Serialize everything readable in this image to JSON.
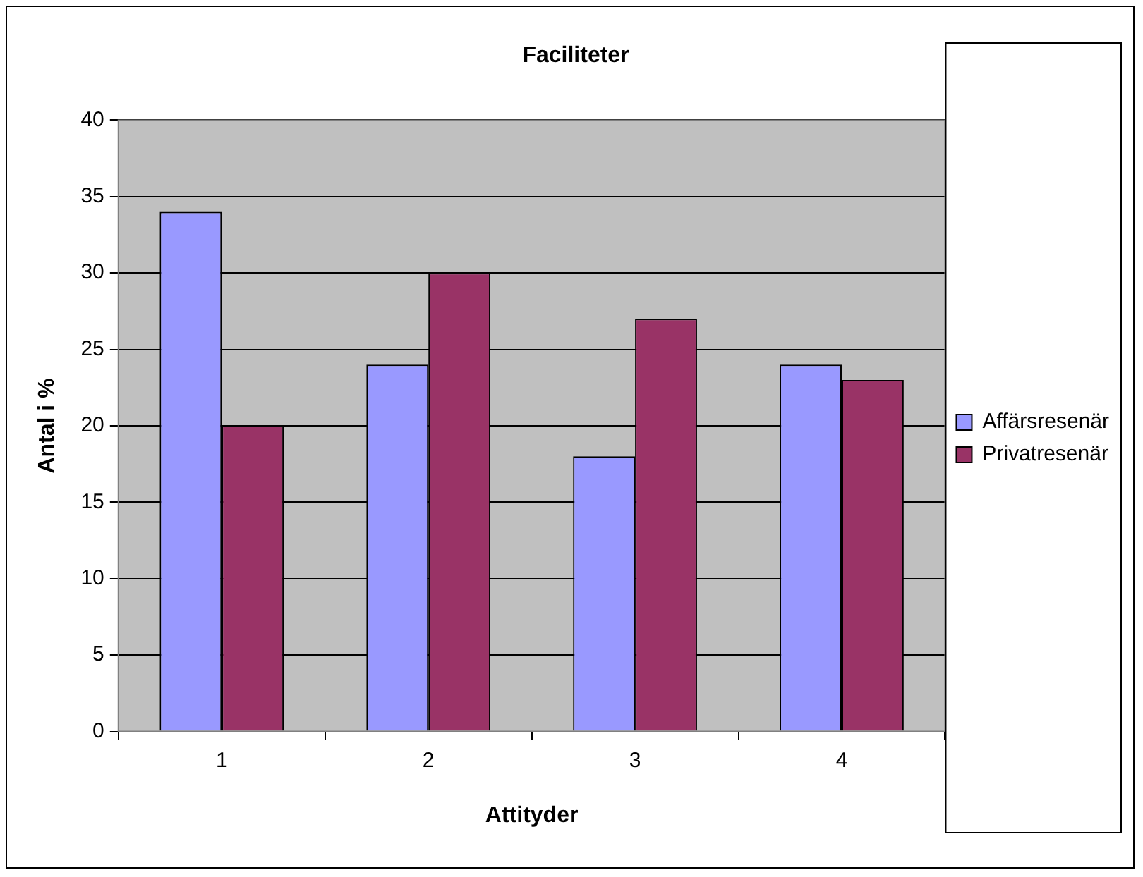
{
  "chart_data": {
    "type": "bar",
    "title": "Faciliteter",
    "xlabel": "Attityder",
    "ylabel": "Antal i %",
    "categories": [
      "1",
      "2",
      "3",
      "4"
    ],
    "series": [
      {
        "name": "Affärsresenär",
        "color": "#9999ff",
        "values": [
          34,
          24,
          18,
          24
        ]
      },
      {
        "name": "Privatresenär",
        "color": "#993366",
        "values": [
          20,
          30,
          27,
          23
        ]
      }
    ],
    "ylim": [
      0,
      40
    ],
    "yticks": [
      0,
      5,
      10,
      15,
      20,
      25,
      30,
      35,
      40
    ],
    "grid": "y",
    "legend": "right"
  }
}
